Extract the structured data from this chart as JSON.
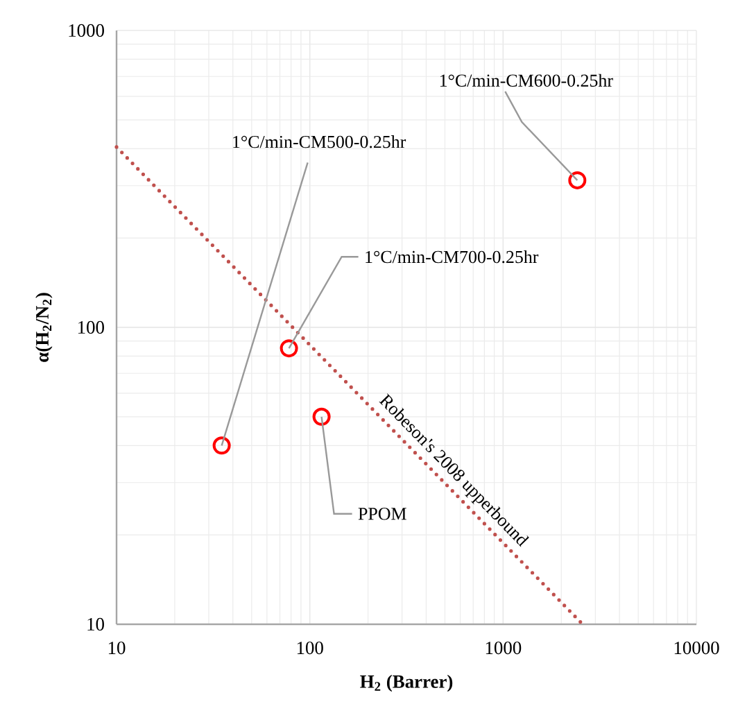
{
  "chart_data": {
    "type": "scatter",
    "xlabel": "H$_{2}$ (Barrer)",
    "ylabel": "α(H$_{2}$/N$_{2}$)",
    "log": "xy",
    "grid": true,
    "xlim": [
      10,
      10000
    ],
    "ylim": [
      10,
      1000
    ],
    "xticks": [
      10,
      100,
      1000,
      10000
    ],
    "yticks": [
      10,
      100,
      1000
    ],
    "series": [
      {
        "color": "#ff0000",
        "marker": "circle",
        "x": [
          35,
          78,
          115,
          2420
        ],
        "values": [
          40,
          85,
          50,
          313
        ]
      },
      {
        "type": "line",
        "name": "Robeson's 2008 upperbound",
        "color": "#c0504d",
        "line_style": "dotted",
        "marker": "none",
        "x": [
          10,
          2580
        ],
        "values": [
          405,
          10
        ]
      }
    ],
    "annotations": [
      {
        "text": "1°C/min-CM500-0.25hr",
        "x": 35,
        "y": 40
      },
      {
        "text": "1°C/min-CM700-0.25hr",
        "x": 78,
        "y": 85
      },
      {
        "text": "PPOM",
        "x": 115,
        "y": 50
      },
      {
        "text": "1°C/min-CM600-0.25hr",
        "x": 2420,
        "y": 313
      }
    ]
  }
}
